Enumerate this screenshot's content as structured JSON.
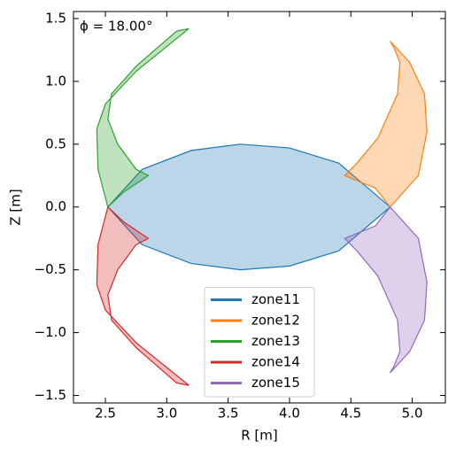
{
  "chart_data": {
    "type": "polygon",
    "annotation": "ϕ = 18.00°",
    "xlabel": "R [m]",
    "ylabel": "Z [m]",
    "xlim": [
      2.24,
      5.27
    ],
    "ylim": [
      -1.56,
      1.556
    ],
    "xticks": [
      2.5,
      {
        "value": 3,
        "label": "3.0"
      },
      3.5,
      {
        "value": 4,
        "label": "4.0"
      },
      4.5,
      {
        "value": 5,
        "label": "5.0"
      }
    ],
    "yticks": [
      {
        "value": -1.5,
        "label": "−1.5"
      },
      {
        "value": -1,
        "label": "−1.0"
      },
      {
        "value": -0.5,
        "label": "−0.5"
      },
      {
        "value": 0,
        "label": "0.0"
      },
      0.5,
      {
        "value": 1,
        "label": "1.0"
      },
      1.5
    ],
    "legend": "lower center",
    "series": [
      {
        "name": "zone11",
        "color": "#1f77b4",
        "x": [
          2.52,
          2.8,
          3.2,
          3.6,
          4.0,
          4.4,
          4.82,
          4.4,
          4.0,
          3.6,
          3.2,
          2.8
        ],
        "values": [
          0.0,
          0.3,
          0.45,
          0.5,
          0.47,
          0.35,
          0.0,
          -0.35,
          -0.47,
          -0.5,
          -0.45,
          -0.3
        ]
      },
      {
        "name": "zone12",
        "color": "#ff7f0e",
        "x": [
          4.82,
          5.05,
          5.12,
          5.1,
          4.98,
          4.82,
          4.85,
          4.9,
          4.88,
          4.72,
          4.55,
          4.45,
          4.7
        ],
        "values": [
          0.0,
          0.25,
          0.6,
          0.9,
          1.15,
          1.32,
          1.27,
          1.15,
          0.9,
          0.55,
          0.35,
          0.25,
          0.15
        ]
      },
      {
        "name": "zone13",
        "color": "#2ca02c",
        "x": [
          2.52,
          2.44,
          2.43,
          2.5,
          2.75,
          3.18,
          3.08,
          2.75,
          2.55,
          2.52,
          2.6,
          2.75,
          2.85,
          2.65
        ],
        "values": [
          0.0,
          0.3,
          0.62,
          0.82,
          1.08,
          1.42,
          1.4,
          1.12,
          0.9,
          0.7,
          0.5,
          0.3,
          0.25,
          0.12
        ]
      },
      {
        "name": "zone14",
        "color": "#d62728",
        "x": [
          2.52,
          2.44,
          2.43,
          2.5,
          2.75,
          3.18,
          3.08,
          2.75,
          2.55,
          2.52,
          2.6,
          2.75,
          2.85,
          2.65
        ],
        "values": [
          0.0,
          -0.3,
          -0.62,
          -0.82,
          -1.08,
          -1.42,
          -1.4,
          -1.12,
          -0.9,
          -0.7,
          -0.5,
          -0.3,
          -0.25,
          -0.12
        ]
      },
      {
        "name": "zone15",
        "color": "#9467bd",
        "x": [
          4.82,
          5.05,
          5.12,
          5.1,
          4.98,
          4.82,
          4.85,
          4.9,
          4.88,
          4.72,
          4.55,
          4.45,
          4.7
        ],
        "values": [
          0.0,
          -0.25,
          -0.6,
          -0.9,
          -1.15,
          -1.32,
          -1.27,
          -1.15,
          -0.9,
          -0.55,
          -0.35,
          -0.25,
          -0.15
        ]
      }
    ]
  }
}
